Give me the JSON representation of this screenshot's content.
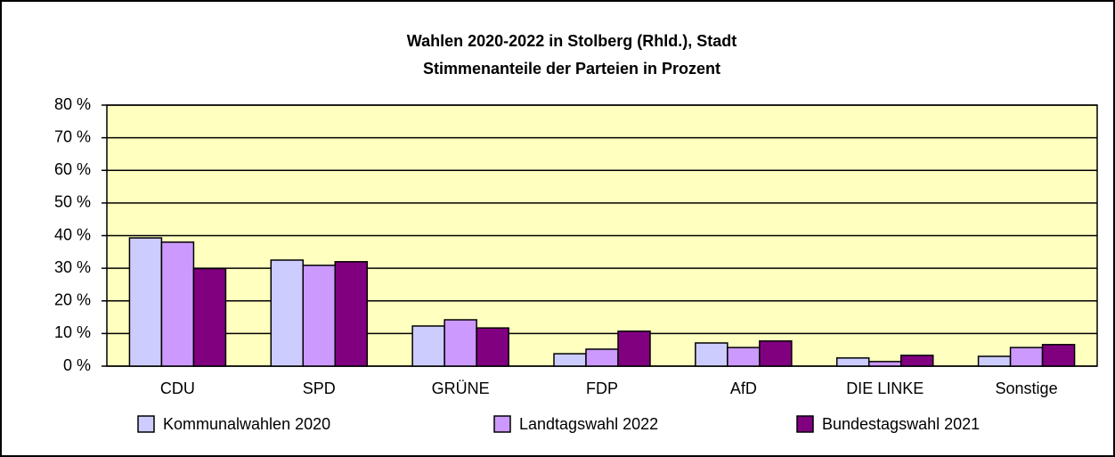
{
  "chart_data": {
    "type": "bar",
    "title": "Wahlen 2020-2022 in Stolberg (Rhld.), Stadt",
    "subtitle": "Stimmenanteile der Parteien in Prozent",
    "categories": [
      "CDU",
      "SPD",
      "GRÜNE",
      "FDP",
      "AfD",
      "DIE LINKE",
      "Sonstige"
    ],
    "series": [
      {
        "name": "Kommunalwahlen 2020",
        "color": "#ccccff",
        "values": [
          39.3,
          32.5,
          12.3,
          3.8,
          7.1,
          2.5,
          3.0
        ]
      },
      {
        "name": "Landtagswahl 2022",
        "color": "#cc99ff",
        "values": [
          38.0,
          30.9,
          14.2,
          5.2,
          5.7,
          1.4,
          5.7
        ]
      },
      {
        "name": "Bundestagswahl 2021",
        "color": "#800080",
        "values": [
          29.9,
          32.0,
          11.7,
          10.7,
          7.7,
          3.3,
          6.6
        ]
      }
    ],
    "ylim": [
      0,
      80
    ],
    "yticks": [
      {
        "value": 0,
        "label": "0 %"
      },
      {
        "value": 10,
        "label": "10 %"
      },
      {
        "value": 20,
        "label": "20 %"
      },
      {
        "value": 30,
        "label": "30 %"
      },
      {
        "value": 40,
        "label": "40 %"
      },
      {
        "value": 50,
        "label": "50 %"
      },
      {
        "value": 60,
        "label": "60 %"
      },
      {
        "value": 70,
        "label": "70 %"
      },
      {
        "value": 80,
        "label": "80 %"
      }
    ],
    "grid": true,
    "legend": "bottom"
  }
}
